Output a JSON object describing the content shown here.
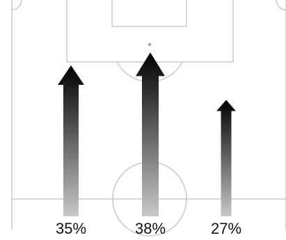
{
  "chart_data": {
    "type": "bar",
    "title": "",
    "xlabel": "",
    "ylabel": "",
    "categories": [
      "",
      "",
      ""
    ],
    "values": [
      35,
      38,
      27
    ],
    "value_labels": [
      "35%",
      "38%",
      "27%"
    ],
    "unit": "%",
    "ylim": [
      0,
      40
    ],
    "grid": false,
    "legend": "none",
    "mark_style": "upward arrows with black-to-light-grey vertical gradient over a football pitch diagram"
  },
  "colors": {
    "pitch_lines": "#c2c2c2",
    "arrow_top": "#000000",
    "arrow_bottom": "#c8c8c8",
    "label_text": "#111111",
    "background": "#ffffff"
  }
}
